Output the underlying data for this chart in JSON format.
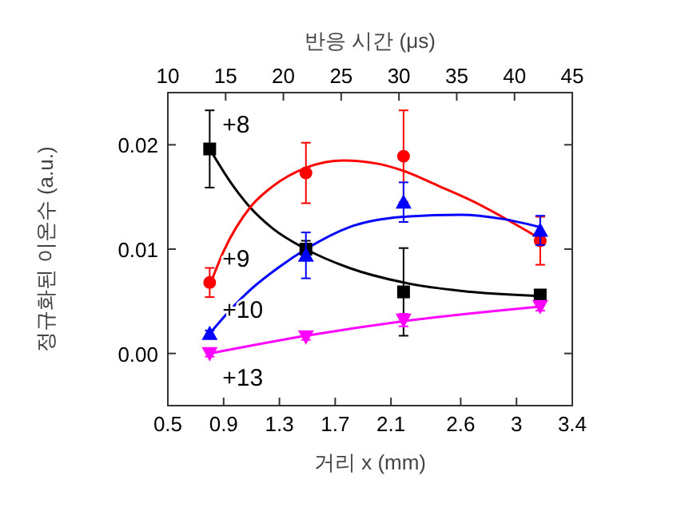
{
  "chart_data": {
    "type": "scatter",
    "xlabel": "거리 x (mm)",
    "ylabel": "정규화된 이온수 (a.u.)",
    "x2label": "반응 시간 (μs)",
    "xlim": [
      0.5,
      3.4
    ],
    "xticks": [
      0.5,
      0.9,
      1.3,
      1.7,
      2.1,
      2.6,
      3,
      3.4
    ],
    "x2lim": [
      10,
      45
    ],
    "x2ticks": [
      10,
      15,
      20,
      25,
      30,
      35,
      40,
      45
    ],
    "ylim": [
      -0.005,
      0.025
    ],
    "yticks": [
      {
        "value": 0,
        "label": "0.00"
      },
      {
        "value": 0.01,
        "label": "0.01"
      },
      {
        "value": 0.02,
        "label": "0.02"
      }
    ],
    "grid": false,
    "series": [
      {
        "name": "+8",
        "color": "#000000",
        "marker": "square",
        "x": [
          0.8,
          1.49,
          2.19,
          3.17
        ],
        "values": [
          0.0196,
          0.01,
          0.0059,
          0.0056
        ],
        "errors": [
          0.0037,
          0.0008,
          0.0042,
          0.0005
        ]
      },
      {
        "name": "+9",
        "color": "#ff0000",
        "marker": "circle",
        "x": [
          0.8,
          1.49,
          2.19,
          3.17
        ],
        "values": [
          0.0068,
          0.0173,
          0.0189,
          0.0108
        ],
        "errors": [
          0.0014,
          0.0029,
          0.0044,
          0.0023
        ]
      },
      {
        "name": "+10",
        "color": "#0000ff",
        "marker": "triangle",
        "x": [
          0.8,
          1.49,
          2.19,
          3.17
        ],
        "values": [
          0.0019,
          0.0094,
          0.0145,
          0.0118
        ],
        "errors": [
          0.0003,
          0.0022,
          0.0019,
          0.0014
        ]
      },
      {
        "name": "+13",
        "color": "#ff00ff",
        "marker": "triangle-down",
        "x": [
          0.8,
          1.49,
          2.19,
          3.17
        ],
        "values": [
          0.0,
          0.0016,
          0.0032,
          0.0045
        ],
        "errors": [
          0.0003,
          0.0003,
          0.0006,
          0.0004
        ]
      },
      {
        "type": "line",
        "color": "#000000",
        "marker": "none",
        "x": [
          0.8,
          0.95,
          1.09,
          1.25,
          1.49,
          1.8,
          2.19,
          2.6,
          3.17
        ],
        "values": [
          0.0196,
          0.0164,
          0.014,
          0.012,
          0.01,
          0.0082,
          0.0068,
          0.006,
          0.0055
        ]
      },
      {
        "type": "line",
        "color": "#ff0000",
        "marker": "none",
        "x": [
          0.8,
          0.9,
          1.09,
          1.25,
          1.49,
          1.76,
          2.0,
          2.19,
          2.45,
          2.7,
          2.95,
          3.17
        ],
        "values": [
          0.0065,
          0.0098,
          0.014,
          0.016,
          0.0178,
          0.0185,
          0.0182,
          0.0175,
          0.016,
          0.0145,
          0.0127,
          0.011
        ]
      },
      {
        "type": "line",
        "color": "#0000ff",
        "marker": "none",
        "x": [
          0.8,
          0.95,
          1.1,
          1.3,
          1.49,
          1.8,
          2.19,
          2.6,
          2.9,
          3.17
        ],
        "values": [
          0.0019,
          0.0042,
          0.0062,
          0.0083,
          0.01,
          0.0121,
          0.0131,
          0.0133,
          0.0129,
          0.0121
        ]
      },
      {
        "type": "line",
        "color": "#ff00ff",
        "marker": "none",
        "x": [
          0.8,
          1.49,
          2.19,
          3.17
        ],
        "values": [
          0.0,
          0.0017,
          0.0031,
          0.0045
        ]
      }
    ]
  }
}
